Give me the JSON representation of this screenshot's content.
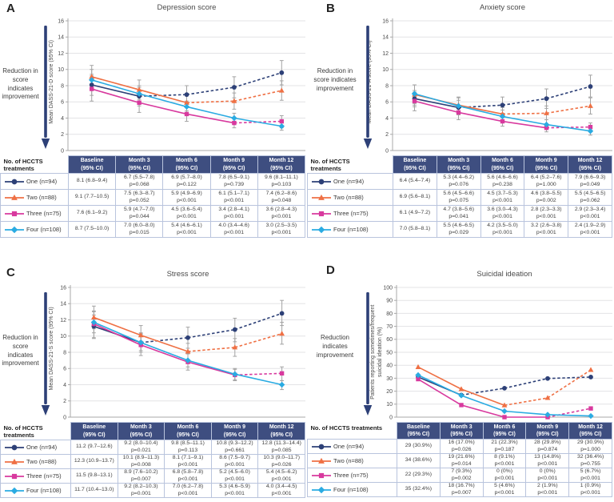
{
  "chart_data": [
    {
      "type": "line",
      "panel": "A",
      "title": "Depression score",
      "ylabel": "Mean DASS-21-D score (95% CI)",
      "annotation": "Reduction in\nscore indicates\nimprovement",
      "table_label": "No. of HCCTS\ntreatments",
      "ylim": [
        0,
        16
      ],
      "ytick_step": 2,
      "error_bars": true,
      "categories": [
        "Baseline",
        "Month 3",
        "Month 6",
        "Month 9",
        "Month 12"
      ],
      "col_header_sub": "(95% CI)",
      "series": [
        {
          "name": "One (n=94)",
          "marker": "circle",
          "color": "#2d4077",
          "solid_segments": 1,
          "values": [
            8.1,
            6.7,
            6.9,
            7.8,
            9.6
          ],
          "ci": [
            [
              6.8,
              9.4
            ],
            [
              5.5,
              7.8
            ],
            [
              5.7,
              8.0
            ],
            [
              6.5,
              9.1
            ],
            [
              8.1,
              11.1
            ]
          ],
          "cells": [
            "8.1 (6.8–9.4)",
            "6.7 (5.5–7.8)|p=0.068",
            "6.9 (5.7–8.0)|p=0.122",
            "7.8 (6.5–9.1)|p=0.739",
            "9.6 (8.1–11.1)|p=0.103"
          ]
        },
        {
          "name": "Two (n=88)",
          "marker": "triangle",
          "color": "#ef7044",
          "solid_segments": 2,
          "values": [
            9.1,
            7.5,
            5.9,
            6.1,
            7.4
          ],
          "ci": [
            [
              7.7,
              10.5
            ],
            [
              6.3,
              8.7
            ],
            [
              4.9,
              6.9
            ],
            [
              5.1,
              7.1
            ],
            [
              6.2,
              8.6
            ]
          ],
          "cells": [
            "9.1 (7.7–10.5)",
            "7.5 (6.3–8.7)|p=0.052",
            "5.9 (4.9–6.9)|p<0.001",
            "6.1 (5.1–7.1)|p<0.001",
            "7.4 (6.2–8.6)|p=0.048"
          ]
        },
        {
          "name": "Three (n=75)",
          "marker": "square",
          "color": "#d8399e",
          "solid_segments": 3,
          "values": [
            7.6,
            5.9,
            4.5,
            3.4,
            3.6
          ],
          "ci": [
            [
              6.1,
              9.2
            ],
            [
              4.7,
              7.0
            ],
            [
              3.6,
              5.4
            ],
            [
              2.8,
              4.1
            ],
            [
              2.8,
              4.3
            ]
          ],
          "cells": [
            "7.6 (6.1–9.2)",
            "5.9 (4.7–7.0)|p=0.044",
            "4.5 (3.6–5.4)|p<0.001",
            "3.4 (2.8–4.1)|p<0.001",
            "3.6 (2.8–4.3)|p<0.001"
          ]
        },
        {
          "name": "Four (n=108)",
          "marker": "diamond",
          "color": "#2aabe2",
          "solid_segments": 4,
          "values": [
            8.7,
            7.0,
            5.4,
            4.0,
            3.0
          ],
          "ci": [
            [
              7.5,
              10.0
            ],
            [
              6.0,
              8.0
            ],
            [
              4.6,
              6.1
            ],
            [
              3.4,
              4.6
            ],
            [
              2.5,
              3.5
            ]
          ],
          "cells": [
            "8.7 (7.5–10.0)",
            "7.0 (6.0–8.0)|p=0.015",
            "5.4 (4.6–6.1)|p<0.001",
            "4.0 (3.4–4.6)|p<0.001",
            "3.0 (2.5–3.5)|p<0.001"
          ]
        }
      ]
    },
    {
      "type": "line",
      "panel": "B",
      "title": "Anxiety score",
      "ylabel": "Mean DASS-21-A score (95% CI)",
      "annotation": "Reduction in\nscore indicates\nimprovement",
      "table_label": "No. of HCCTS\ntreatments",
      "ylim": [
        0,
        16
      ],
      "ytick_step": 2,
      "error_bars": true,
      "categories": [
        "Baseline",
        "Month 3",
        "Month 6",
        "Month 9",
        "Month 12"
      ],
      "col_header_sub": "(95% CI)",
      "series": [
        {
          "name": "One (n=94)",
          "marker": "circle",
          "color": "#2d4077",
          "solid_segments": 1,
          "values": [
            6.4,
            5.3,
            5.6,
            6.4,
            7.9
          ],
          "ci": [
            [
              5.4,
              7.4
            ],
            [
              4.4,
              6.2
            ],
            [
              4.6,
              6.6
            ],
            [
              5.2,
              7.6
            ],
            [
              6.6,
              9.3
            ]
          ],
          "cells": [
            "6.4 (5.4–7.4)",
            "5.3 (4.4–6.2)|p=0.076",
            "5.6 (4.6–6.6)|p=0.238",
            "6.4 (5.2–7.6)|p=1.000",
            "7.9 (6.6–9.3)|p=0.049"
          ]
        },
        {
          "name": "Two (n=88)",
          "marker": "triangle",
          "color": "#ef7044",
          "solid_segments": 2,
          "values": [
            6.9,
            5.6,
            4.5,
            4.6,
            5.5
          ],
          "ci": [
            [
              5.6,
              8.1
            ],
            [
              4.5,
              6.6
            ],
            [
              3.7,
              5.3
            ],
            [
              3.8,
              5.5
            ],
            [
              4.5,
              6.5
            ]
          ],
          "cells": [
            "6.9 (5.6–8.1)",
            "5.6 (4.5–6.6)|p=0.075",
            "4.5 (3.7–5.3)|p<0.001",
            "4.6 (3.8–5.5)|p=0.002",
            "5.5 (4.5–6.5)|p=0.062"
          ]
        },
        {
          "name": "Three (n=75)",
          "marker": "square",
          "color": "#d8399e",
          "solid_segments": 3,
          "values": [
            6.1,
            4.7,
            3.6,
            2.8,
            2.9
          ],
          "ci": [
            [
              4.9,
              7.2
            ],
            [
              3.8,
              5.6
            ],
            [
              3.0,
              4.3
            ],
            [
              2.3,
              3.3
            ],
            [
              2.3,
              3.4
            ]
          ],
          "cells": [
            "6.1 (4.9–7.2)",
            "4.7 (3.8–5.6)|p=0.041",
            "3.6 (3.0–4.3)|p<0.001",
            "2.8 (2.3–3.3)|p<0.001",
            "2.9 (2.3–3.4)|p<0.001"
          ]
        },
        {
          "name": "Four (n=108)",
          "marker": "diamond",
          "color": "#2aabe2",
          "solid_segments": 4,
          "values": [
            7.0,
            5.5,
            4.2,
            3.2,
            2.4
          ],
          "ci": [
            [
              5.8,
              8.1
            ],
            [
              4.6,
              6.5
            ],
            [
              3.5,
              5.0
            ],
            [
              2.6,
              3.8
            ],
            [
              1.9,
              2.9
            ]
          ],
          "cells": [
            "7.0 (5.8–8.1)",
            "5.5 (4.6–6.5)|p=0.029",
            "4.2 (3.5–5.0)|p<0.001",
            "3.2 (2.6–3.8)|p<0.001",
            "2.4 (1.9–2.9)|p<0.001"
          ]
        }
      ]
    },
    {
      "type": "line",
      "panel": "C",
      "title": "Stress score",
      "ylabel": "Mean DASS-21-S score (95% CI)",
      "annotation": "Reduction in\nscore indicates\nimprovement",
      "table_label": "No. of HCCTS\ntreatments",
      "ylim": [
        0,
        16
      ],
      "ytick_step": 2,
      "error_bars": true,
      "categories": [
        "Baseline",
        "Month 3",
        "Month 6",
        "Month 9",
        "Month 12"
      ],
      "col_header_sub": "(95% CI)",
      "series": [
        {
          "name": "One (n=94)",
          "marker": "circle",
          "color": "#2d4077",
          "solid_segments": 1,
          "values": [
            11.2,
            9.2,
            9.8,
            10.8,
            12.8
          ],
          "ci": [
            [
              9.7,
              12.6
            ],
            [
              8.0,
              10.4
            ],
            [
              8.5,
              11.1
            ],
            [
              9.3,
              12.2
            ],
            [
              11.3,
              14.4
            ]
          ],
          "cells": [
            "11.2 (9.7–12.6)",
            "9.2 (8.0–10.4)|p=0.021",
            "9.8 (8.5–11.1)|p=0.113",
            "10.8 (9.3–12.2)|p=0.661",
            "12.8 (11.3–14.4)|p=0.085"
          ]
        },
        {
          "name": "Two (n=88)",
          "marker": "triangle",
          "color": "#ef7044",
          "solid_segments": 2,
          "values": [
            12.3,
            10.1,
            8.1,
            8.6,
            10.3
          ],
          "ci": [
            [
              10.9,
              13.7
            ],
            [
              8.9,
              11.3
            ],
            [
              7.1,
              9.1
            ],
            [
              7.5,
              9.7
            ],
            [
              9.0,
              11.7
            ]
          ],
          "cells": [
            "12.3 (10.9–13.7)",
            "10.1 (8.9–11.3)|p=0.008",
            "8.1 (7.1–9.1)|p<0.001",
            "8.6 (7.5–9.7)|p<0.001",
            "10.3 (9.0–11.7)|p=0.026"
          ]
        },
        {
          "name": "Three (n=75)",
          "marker": "square",
          "color": "#d8399e",
          "solid_segments": 3,
          "values": [
            11.5,
            8.9,
            6.8,
            5.2,
            5.4
          ],
          "ci": [
            [
              9.8,
              13.1
            ],
            [
              7.6,
              10.2
            ],
            [
              5.8,
              7.8
            ],
            [
              4.5,
              6.0
            ],
            [
              4.5,
              6.2
            ]
          ],
          "cells": [
            "11.5 (9.8–13.1)",
            "8.9 (7.6–10.2)|p=0.007",
            "6.8 (5.8–7.8)|p<0.001",
            "5.2 (4.5–6.0)|p<0.001",
            "5.4 (4.5–6.2)|p<0.001"
          ]
        },
        {
          "name": "Four (n=108)",
          "marker": "diamond",
          "color": "#2aabe2",
          "solid_segments": 4,
          "values": [
            11.7,
            9.2,
            7.0,
            5.3,
            4.0
          ],
          "ci": [
            [
              10.4,
              13.0
            ],
            [
              8.2,
              10.3
            ],
            [
              6.2,
              7.8
            ],
            [
              4.6,
              5.9
            ],
            [
              3.4,
              4.5
            ]
          ],
          "cells": [
            "11.7 (10.4–13.0)",
            "9.2 (8.2–10.3)|p=0.001",
            "7.0 (6.2–7.8)|p<0.001",
            "5.3 (4.6–5.9)|p<0.001",
            "4.0 (3.4–4.5)|p<0.001"
          ]
        }
      ]
    },
    {
      "type": "line",
      "panel": "D",
      "title": "Suicidal ideation",
      "ylabel": "Patients reporting sometimes/frequent\nsuicidal ideation (%)",
      "annotation": "Reduction\nindicates\nimprovement",
      "table_label": "No. of HCCTS treatments",
      "ylim": [
        0,
        100
      ],
      "ytick_step": 10,
      "error_bars": false,
      "categories": [
        "Baseline",
        "Month 3",
        "Month 6",
        "Month 9",
        "Month 12"
      ],
      "col_header_sub": "(95% CI)",
      "series": [
        {
          "name": "One (n=94)",
          "marker": "circle",
          "color": "#2d4077",
          "solid_segments": 1,
          "values": [
            30.9,
            17.0,
            22.3,
            29.8,
            30.9
          ],
          "ci": null,
          "cells": [
            "29 (30.9%)",
            "16 (17.0%)|p=0.026",
            "21 (22.3%)|p=0.187",
            "28 (29.8%)|p=0.874",
            "29 (30.9%)|p=1.000"
          ]
        },
        {
          "name": "Two (n=88)",
          "marker": "triangle",
          "color": "#ef7044",
          "solid_segments": 2,
          "values": [
            38.6,
            21.6,
            9.1,
            14.8,
            36.4
          ],
          "ci": null,
          "cells": [
            "34 (38.6%)",
            "19 (21.6%)|p=0.014",
            "8 (9.1%)|p<0.001",
            "13 (14.8%)|p<0.001",
            "32 (36.4%)|p=0.755"
          ]
        },
        {
          "name": "Three (n=75)",
          "marker": "square",
          "color": "#d8399e",
          "solid_segments": 3,
          "values": [
            29.3,
            9.3,
            0,
            0,
            6.7
          ],
          "ci": null,
          "cells": [
            "22 (29.3%)",
            "7 (9.3%)|p=0.002",
            "0 (0%)|p<0.001",
            "0 (0%)|p<0.001",
            "5 (6.7%)|p<0.001"
          ]
        },
        {
          "name": "Four (n=108)",
          "marker": "diamond",
          "color": "#2aabe2",
          "solid_segments": 4,
          "values": [
            32.4,
            16.7,
            4.6,
            1.9,
            0.9
          ],
          "ci": null,
          "cells": [
            "35 (32.4%)",
            "18 (16.7%)|p=0.007",
            "5 (4.6%)|p<0.001",
            "2 (1.9%)|p<0.001",
            "1 (0.9%)|p<0.001"
          ]
        }
      ]
    }
  ],
  "colors": {
    "header_bg": "#3e4e80",
    "table_border": "#b9c4dd",
    "grid": "#e3e3e6",
    "axis": "#a8a8a8",
    "error_bar": "#a3a3a3",
    "arrow": "#2d4077",
    "series_navy": "#2d4077",
    "series_orange": "#ef7044",
    "series_magenta": "#d8399e",
    "series_cyan": "#2aabe2"
  }
}
